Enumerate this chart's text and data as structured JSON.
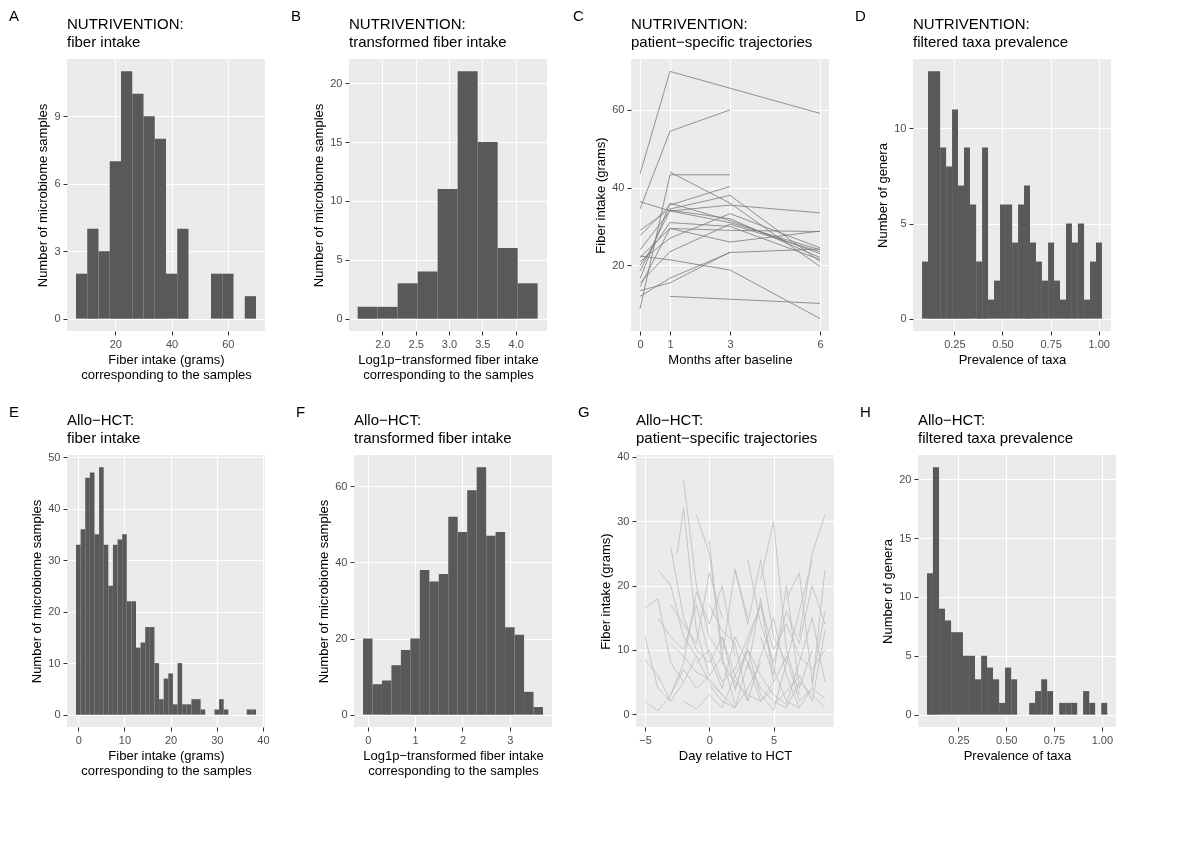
{
  "chart_data": [
    {
      "type": "histogram",
      "title": "NUTRIVENTION:\nfiber intake",
      "annotations": [
        "A"
      ],
      "xlabel": "Fiber intake (grams)\ncorresponding to the samples",
      "ylabel": "Number of microbiome samples",
      "color": "#595959",
      "grid": true,
      "bins": [
        6,
        10,
        14,
        18,
        22,
        26,
        30,
        34,
        38,
        42,
        46,
        50,
        54,
        58,
        62,
        66,
        70
      ],
      "values": [
        2,
        4,
        3,
        7,
        11,
        10,
        9,
        8,
        2,
        4,
        0,
        0,
        2,
        2,
        0,
        1
      ],
      "xlim": [
        2.8,
        73.2
      ],
      "xticks": [
        20,
        40,
        60
      ],
      "ylim": [
        -0.55,
        11.55
      ],
      "yticks": [
        0,
        3,
        6,
        9
      ]
    },
    {
      "type": "histogram",
      "title": "NUTRIVENTION:\ntransformed fiber intake",
      "annotations": [
        "B"
      ],
      "xlabel": "Log1p−transformed fiber intake\ncorresponding to the samples",
      "ylabel": "Number of microbiome samples",
      "color": "#595959",
      "grid": true,
      "bins": [
        1.63,
        1.93,
        2.23,
        2.53,
        2.83,
        3.13,
        3.43,
        3.73,
        4.03,
        4.33
      ],
      "values": [
        1,
        1,
        3,
        4,
        11,
        21,
        15,
        6,
        3
      ],
      "xlim": [
        1.5,
        4.47
      ],
      "xticks": [
        {
          "value": 2,
          "label": "2.0"
        },
        {
          "value": 2.5,
          "label": "2.5"
        },
        {
          "value": 3,
          "label": "3.0"
        },
        {
          "value": 3.5,
          "label": "3.5"
        },
        {
          "value": 4,
          "label": "4.0"
        }
      ],
      "ylim": [
        -1.05,
        22.05
      ],
      "yticks": [
        0,
        5,
        10,
        15,
        20
      ]
    },
    {
      "type": "line",
      "title": "NUTRIVENTION:\npatient−specific trajectories",
      "annotations": [
        "C"
      ],
      "xlabel": "Months after baseline",
      "ylabel": "Fiber intake (grams)",
      "grid": true,
      "xlim": [
        -0.3,
        6.3
      ],
      "xticks": [
        0,
        1,
        3,
        6
      ],
      "ylim": [
        3.1,
        73.1
      ],
      "yticks": [
        20,
        40,
        60
      ],
      "series": [
        {
          "color": "#7a7a7a",
          "x": [
            0,
            1,
            6
          ],
          "values": [
            43.5,
            69.9,
            59.1
          ]
        },
        {
          "color": "#7a7a7a",
          "x": [
            0,
            1,
            3
          ],
          "values": [
            34.5,
            54.5,
            60
          ]
        },
        {
          "color": "#7a7a7a",
          "x": [
            1,
            6
          ],
          "values": [
            12,
            10.2
          ]
        },
        {
          "color": "#7a7a7a",
          "x": [
            0,
            1,
            3
          ],
          "values": [
            8.8,
            43.3,
            43.3
          ]
        },
        {
          "color": "#7a7a7a",
          "x": [
            0,
            1,
            3,
            6
          ],
          "values": [
            36.4,
            34,
            31,
            24
          ]
        },
        {
          "color": "#7a7a7a",
          "x": [
            0,
            1,
            3,
            6
          ],
          "values": [
            29,
            34.5,
            38,
            21
          ]
        },
        {
          "color": "#7a7a7a",
          "x": [
            0,
            1,
            3
          ],
          "values": [
            27.6,
            35.5,
            40.3
          ]
        },
        {
          "color": "#7a7a7a",
          "x": [
            1,
            3,
            6
          ],
          "values": [
            44,
            36,
            19.7
          ]
        },
        {
          "color": "#7a7a7a",
          "x": [
            0,
            1,
            3,
            6
          ],
          "values": [
            24,
            34,
            35.5,
            33.5
          ]
        },
        {
          "color": "#7a7a7a",
          "x": [
            0,
            1,
            3,
            6
          ],
          "values": [
            22,
            29.5,
            29,
            28.7
          ]
        },
        {
          "color": "#7a7a7a",
          "x": [
            0,
            1,
            3,
            6
          ],
          "values": [
            21,
            27,
            33.3,
            24.5
          ]
        },
        {
          "color": "#7a7a7a",
          "x": [
            0,
            1,
            3,
            6
          ],
          "values": [
            22.4,
            21.4,
            18.8,
            6.3
          ]
        },
        {
          "color": "#7a7a7a",
          "x": [
            0,
            1,
            3,
            6
          ],
          "values": [
            14.5,
            29.5,
            26,
            28.8
          ]
        },
        {
          "color": "#7a7a7a",
          "x": [
            0,
            1,
            3,
            6
          ],
          "values": [
            18.5,
            34.2,
            32,
            22
          ]
        },
        {
          "color": "#7a7a7a",
          "x": [
            0,
            1,
            3,
            6
          ],
          "values": [
            15.5,
            23.5,
            30.6,
            23.5
          ]
        },
        {
          "color": "#7a7a7a",
          "x": [
            0,
            1,
            3,
            6
          ],
          "values": [
            12,
            16.7,
            23.3,
            24.2
          ]
        },
        {
          "color": "#7a7a7a",
          "x": [
            0,
            1,
            3
          ],
          "values": [
            13.5,
            15.5,
            23.4
          ]
        },
        {
          "color": "#7a7a7a",
          "x": [
            0,
            1,
            3,
            6
          ],
          "values": [
            16.5,
            36,
            31.5,
            23
          ]
        },
        {
          "color": "#7a7a7a",
          "x": [
            0,
            1,
            3,
            6
          ],
          "values": [
            20,
            31,
            30,
            21.5
          ]
        }
      ]
    },
    {
      "type": "histogram",
      "title": "NUTRIVENTION:\nfiltered taxa prevalence",
      "annotations": [
        "D"
      ],
      "xlabel": "Prevalence of taxa",
      "ylabel": "Number of genera",
      "color": "#595959",
      "grid": true,
      "bins": [
        0.082,
        0.113,
        0.144,
        0.176,
        0.207,
        0.238,
        0.269,
        0.3,
        0.331,
        0.363,
        0.394,
        0.425,
        0.456,
        0.487,
        0.518,
        0.55,
        0.581,
        0.612,
        0.643,
        0.674,
        0.705,
        0.737,
        0.768,
        0.799,
        0.83,
        0.861,
        0.892,
        0.924,
        0.955,
        0.986,
        1.017
      ],
      "values": [
        3,
        13,
        13,
        9,
        8,
        11,
        7,
        9,
        6,
        3,
        9,
        1,
        2,
        6,
        6,
        4,
        6,
        7,
        4,
        3,
        2,
        4,
        2,
        1,
        5,
        4,
        5,
        1,
        3,
        4
      ],
      "xlim": [
        0.035,
        1.064
      ],
      "xticks": [
        {
          "value": 0.25,
          "label": "0.25"
        },
        {
          "value": 0.5,
          "label": "0.50"
        },
        {
          "value": 0.75,
          "label": "0.75"
        },
        {
          "value": 1,
          "label": "1.00"
        }
      ],
      "ylim": [
        -0.65,
        13.65
      ],
      "yticks": [
        0,
        5,
        10
      ]
    },
    {
      "type": "histogram",
      "title": "Allo−HCT:\nfiber intake",
      "annotations": [
        "E"
      ],
      "xlabel": "Fiber intake (grams)\ncorresponding to the samples",
      "ylabel": "Number of microbiome samples",
      "color": "#595959",
      "grid": true,
      "bins": [
        -0.5,
        0.5,
        1.5,
        2.5,
        3.5,
        4.5,
        5.5,
        6.5,
        7.5,
        8.5,
        9.5,
        10.5,
        11.5,
        12.5,
        13.5,
        14.5,
        15.5,
        16.5,
        17.5,
        18.5,
        19.5,
        20.5,
        21.5,
        22.5,
        23.5,
        24.5,
        25.5,
        26.5,
        27.5,
        28.5,
        29.5,
        30.5,
        31.5,
        32.5,
        33.5,
        34.5,
        35.5,
        36.5,
        37.5,
        38.5
      ],
      "values": [
        33,
        36,
        46,
        47,
        35,
        48,
        33,
        25,
        33,
        34,
        35,
        22,
        22,
        13,
        14,
        17,
        17,
        10,
        3,
        7,
        8,
        2,
        10,
        2,
        2,
        3,
        3,
        1,
        0,
        0,
        1,
        3,
        1,
        0,
        0,
        0,
        0,
        1,
        1
      ],
      "xlim": [
        -2.45,
        40.45
      ],
      "xticks": [
        0,
        10,
        20,
        30,
        40
      ],
      "ylim": [
        -2.4,
        50.4
      ],
      "yticks": [
        0,
        10,
        20,
        30,
        40,
        50
      ]
    },
    {
      "type": "histogram",
      "title": "Allo−HCT:\ntransformed fiber intake",
      "annotations": [
        "F"
      ],
      "xlabel": "Log1p−transformed fiber intake\ncorresponding to the samples",
      "ylabel": "Number of microbiome samples",
      "color": "#595959",
      "grid": true,
      "bins": [
        -0.1,
        0.1,
        0.3,
        0.5,
        0.7,
        0.9,
        1.1,
        1.3,
        1.5,
        1.7,
        1.9,
        2.1,
        2.3,
        2.5,
        2.7,
        2.9,
        3.1,
        3.3,
        3.5,
        3.7
      ],
      "values": [
        20,
        8,
        9,
        13,
        17,
        20,
        38,
        35,
        37,
        52,
        48,
        59,
        65,
        47,
        48,
        23,
        21,
        6,
        2
      ],
      "xlim": [
        -0.29,
        3.89
      ],
      "xticks": [
        0,
        1,
        2,
        3
      ],
      "ylim": [
        -3.25,
        68.25
      ],
      "yticks": [
        0,
        20,
        40,
        60
      ]
    },
    {
      "type": "line",
      "title": "Allo−HCT:\npatient−specific trajectories",
      "annotations": [
        "G"
      ],
      "xlabel": "Day relative to HCT",
      "ylabel": "Fiber intake (grams)",
      "grid": true,
      "xlim": [
        -5.7,
        9.7
      ],
      "xticks": [
        -5,
        0,
        5
      ],
      "ylim": [
        -2,
        40.3
      ],
      "yticks": [
        0,
        10,
        20,
        30,
        40
      ],
      "series": [
        {
          "color": "#bdbdbd",
          "x": [
            -2,
            -1,
            0,
            1,
            2,
            3
          ],
          "values": [
            36.5,
            20,
            12,
            9,
            22.5,
            15
          ]
        },
        {
          "color": "#bdbdbd",
          "x": [
            -2.5,
            -2,
            -1,
            0
          ],
          "values": [
            25,
            32,
            13,
            6
          ]
        },
        {
          "color": "#bdbdbd",
          "x": [
            -1,
            0,
            1
          ],
          "values": [
            31,
            25,
            10
          ]
        },
        {
          "color": "#bdbdbd",
          "x": [
            4,
            5,
            6,
            7
          ],
          "values": [
            21,
            30,
            10,
            3
          ]
        },
        {
          "color": "#bdbdbd",
          "x": [
            7,
            8,
            9
          ],
          "values": [
            12,
            25,
            31
          ]
        },
        {
          "color": "#bdbdbd",
          "x": [
            -5,
            -4,
            -3,
            -2
          ],
          "values": [
            16.5,
            18,
            8,
            5
          ]
        },
        {
          "color": "#bdbdbd",
          "x": [
            -4,
            -3,
            -2,
            -1,
            0,
            1
          ],
          "values": [
            22.5,
            20,
            12,
            9,
            5,
            3
          ]
        },
        {
          "color": "#bdbdbd",
          "x": [
            -3,
            -2,
            -1,
            0,
            1,
            2,
            3
          ],
          "values": [
            26,
            15,
            10,
            8,
            12,
            6,
            2
          ]
        },
        {
          "color": "#bdbdbd",
          "x": [
            0,
            1,
            2,
            3,
            4,
            5
          ],
          "values": [
            27,
            8,
            5,
            3,
            2,
            5
          ]
        },
        {
          "color": "#bdbdbd",
          "x": [
            2,
            3,
            4,
            5,
            6,
            7,
            8
          ],
          "values": [
            22.5,
            14,
            24,
            12,
            8,
            16,
            24
          ]
        },
        {
          "color": "#bdbdbd",
          "x": [
            -5,
            -4,
            -3,
            -2,
            -1,
            0,
            1,
            2
          ],
          "values": [
            2,
            0.5,
            3,
            7,
            4,
            6,
            9,
            1.5
          ]
        },
        {
          "color": "#bdbdbd",
          "x": [
            3,
            4,
            5,
            6,
            7,
            8,
            9
          ],
          "values": [
            7,
            18,
            5,
            9,
            2,
            4,
            22.5
          ]
        },
        {
          "color": "#bdbdbd",
          "x": [
            -3,
            -2,
            -1,
            0,
            1,
            2,
            3,
            4
          ],
          "values": [
            11,
            9,
            6.5,
            5.5,
            3,
            1,
            4,
            8
          ]
        },
        {
          "color": "#bdbdbd",
          "x": [
            5,
            6,
            7,
            8,
            9
          ],
          "values": [
            1.5,
            3.5,
            6,
            2,
            13
          ]
        },
        {
          "color": "#bdbdbd",
          "x": [
            -5,
            -4,
            -3
          ],
          "values": [
            12,
            4,
            2
          ]
        },
        {
          "color": "#bdbdbd",
          "x": [
            1,
            2,
            3,
            4,
            5,
            6,
            7,
            8,
            9
          ],
          "values": [
            12,
            4,
            10,
            6,
            3,
            1.5,
            8,
            15,
            5
          ]
        },
        {
          "color": "#bdbdbd",
          "x": [
            -4,
            -3,
            -2,
            -1,
            0,
            1,
            2,
            3,
            4,
            5
          ],
          "values": [
            15,
            12,
            10,
            17,
            9,
            4,
            12,
            8,
            2,
            4
          ]
        },
        {
          "color": "#bdbdbd",
          "x": [
            0,
            1,
            2,
            3,
            4,
            5,
            6,
            7
          ],
          "values": [
            17,
            13,
            11,
            2,
            9,
            15,
            6,
            1
          ]
        },
        {
          "color": "#bdbdbd",
          "x": [
            -2,
            -1,
            0,
            1,
            2,
            3,
            4,
            5,
            6
          ],
          "values": [
            2,
            0.8,
            3,
            1,
            6,
            10,
            3,
            0.6,
            8
          ]
        },
        {
          "color": "#bdbdbd",
          "x": [
            6,
            7,
            8,
            9
          ],
          "values": [
            18,
            22,
            5,
            16
          ]
        },
        {
          "color": "#bdbdbd",
          "x": [
            -3,
            -2,
            -1,
            0,
            1,
            2
          ],
          "values": [
            3,
            8,
            19,
            14,
            20,
            9
          ]
        },
        {
          "color": "#bdbdbd",
          "x": [
            2,
            3,
            4,
            5,
            6,
            7,
            8,
            9
          ],
          "values": [
            3.5,
            11,
            17,
            7,
            2,
            1,
            4,
            2.5
          ]
        },
        {
          "color": "#bdbdbd",
          "x": [
            -1,
            0,
            1,
            2,
            3,
            4,
            5,
            6,
            7,
            8,
            9
          ],
          "values": [
            8,
            10,
            5,
            7,
            12,
            17,
            10,
            14,
            9,
            7,
            10
          ]
        },
        {
          "color": "#bdbdbd",
          "x": [
            -5,
            -4,
            -3,
            -2,
            -1
          ],
          "values": [
            8.5,
            6,
            2,
            5,
            9
          ]
        },
        {
          "color": "#bdbdbd",
          "x": [
            4,
            5,
            6,
            7,
            8
          ],
          "values": [
            12,
            6,
            20,
            4,
            10
          ]
        },
        {
          "color": "#bdbdbd",
          "x": [
            0,
            1,
            2,
            3,
            4,
            5,
            6,
            7,
            8,
            9
          ],
          "values": [
            4.5,
            2,
            1,
            8,
            4,
            2,
            1,
            5,
            3,
            1
          ]
        },
        {
          "color": "#bdbdbd",
          "x": [
            -3,
            -2,
            -1,
            0,
            1
          ],
          "values": [
            17,
            14,
            11,
            22,
            15
          ]
        },
        {
          "color": "#bdbdbd",
          "x": [
            3,
            4,
            5,
            6,
            7,
            8,
            9
          ],
          "values": [
            24,
            14,
            8,
            16,
            11,
            20,
            14
          ]
        }
      ]
    },
    {
      "type": "histogram",
      "title": "Allo−HCT:\nfiltered taxa prevalence",
      "annotations": [
        "H"
      ],
      "xlabel": "Prevalence of taxa",
      "ylabel": "Number of genera",
      "color": "#595959",
      "grid": true,
      "bins": [
        0.086,
        0.117,
        0.149,
        0.18,
        0.212,
        0.243,
        0.274,
        0.306,
        0.337,
        0.369,
        0.4,
        0.431,
        0.463,
        0.494,
        0.526,
        0.557,
        0.588,
        0.62,
        0.651,
        0.683,
        0.714,
        0.745,
        0.777,
        0.808,
        0.84,
        0.871,
        0.902,
        0.934,
        0.965,
        0.997,
        1.028
      ],
      "values": [
        12,
        21,
        9,
        8,
        7,
        7,
        5,
        5,
        3,
        5,
        4,
        3,
        1,
        4,
        3,
        0,
        0,
        1,
        2,
        3,
        2,
        0,
        1,
        1,
        1,
        0,
        2,
        1,
        0,
        1
      ],
      "xlim": [
        0.039,
        1.074
      ],
      "xticks": [
        {
          "value": 0.25,
          "label": "0.25"
        },
        {
          "value": 0.5,
          "label": "0.50"
        },
        {
          "value": 0.75,
          "label": "0.75"
        },
        {
          "value": 1,
          "label": "1.00"
        }
      ],
      "ylim": [
        -1.05,
        22.05
      ],
      "yticks": [
        0,
        5,
        10,
        15,
        20
      ]
    }
  ]
}
